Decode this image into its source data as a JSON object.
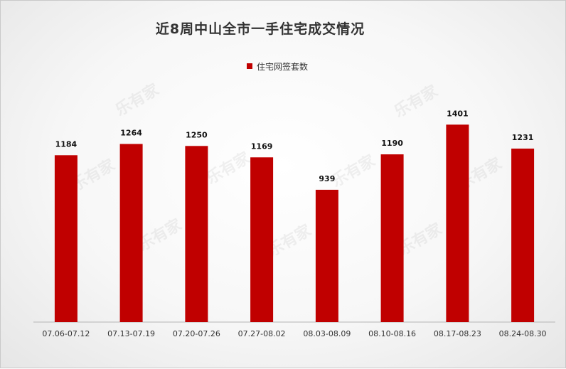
{
  "chart_data": {
    "type": "bar",
    "title": "近8周中山全市一手住宅成交情况",
    "categories": [
      "07.06-07.12",
      "07.13-07.19",
      "07.20-07.26",
      "07.27-08.02",
      "08.03-08.09",
      "08.10-08.16",
      "08.17-08.23",
      "08.24-08.30"
    ],
    "series": [
      {
        "name": "住宅网签套数",
        "values": [
          1184,
          1264,
          1250,
          1169,
          939,
          1190,
          1401,
          1231
        ]
      }
    ],
    "xlabel": "",
    "ylabel": "",
    "ylim": [
      0,
      1600
    ],
    "grid": false,
    "legend": "top-center",
    "data_labels": true,
    "colors": {
      "bar": "#c00000",
      "axis": "#b5b5b5"
    }
  },
  "watermark": "乐有家"
}
